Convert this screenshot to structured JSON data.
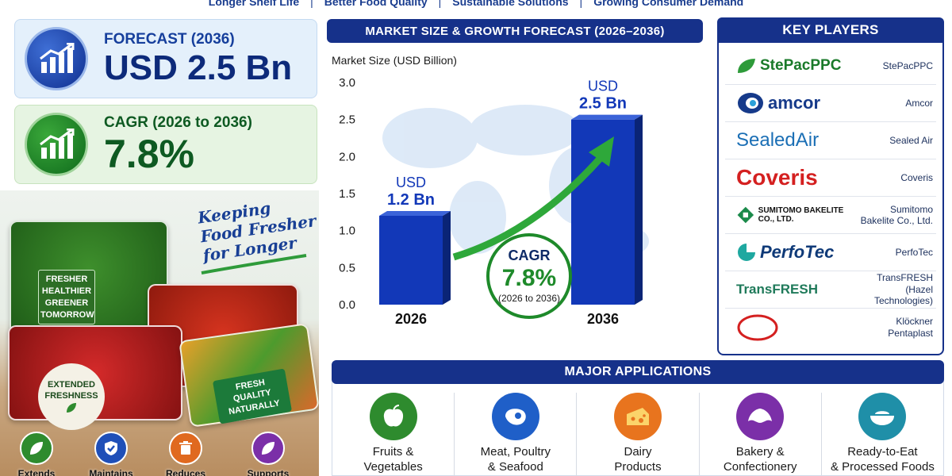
{
  "top_banner": {
    "items": [
      "Longer Shelf Life",
      "Better Food Quality",
      "Sustainable Solutions",
      "Growing Consumer Demand"
    ]
  },
  "forecast_card": {
    "label": "FORECAST (2036)",
    "value": "USD 2.5 Bn"
  },
  "cagr_card": {
    "label": "CAGR (2026 to 2036)",
    "value": "7.8%"
  },
  "photo": {
    "slogan": [
      "Keeping",
      "Food Fresher",
      "for Longer"
    ],
    "tag_fresher": [
      "FRESHER",
      "HEALTHIER",
      "GREENER",
      "TOMORROW"
    ],
    "tag_extended": [
      "EXTENDED",
      "FRESHNESS"
    ],
    "tag_fresh": [
      "FRESH",
      "QUALITY",
      "NATURALLY"
    ],
    "benefits": [
      {
        "label": "Extends",
        "icon": "leaf-icon",
        "color": "#2e8b2e"
      },
      {
        "label": "Maintains",
        "icon": "shield-check-icon",
        "color": "#1f4fb8"
      },
      {
        "label": "Reduces",
        "icon": "trash-icon",
        "color": "#e0691f"
      },
      {
        "label": "Supports",
        "icon": "leaf-icon",
        "color": "#7b2fa8"
      }
    ]
  },
  "chart_data": {
    "type": "bar",
    "title": "MARKET SIZE & GROWTH FORECAST (2026–2036)",
    "ylabel": "Market Size (USD Billion)",
    "xlabel": "",
    "categories": [
      "2026",
      "2036"
    ],
    "values": [
      1.2,
      2.5
    ],
    "value_labels": [
      [
        "USD",
        "1.2 Bn"
      ],
      [
        "USD",
        "2.5 Bn"
      ]
    ],
    "ylim": [
      0,
      3.0
    ],
    "yticks": [
      "3.0",
      "2.5",
      "2.0",
      "1.5",
      "1.0",
      "0.5",
      "0.0"
    ],
    "grid": false,
    "bar_color": "#1238b8",
    "annotation": {
      "line1": "CAGR",
      "line2": "7.8%",
      "line3": "(2026 to 2036)",
      "color": "#1e8a2a"
    }
  },
  "key_players": {
    "title": "KEY PLAYERS",
    "items": [
      {
        "logo": "StePacPPC",
        "name": "StePacPPC",
        "color": "#1a7a2a"
      },
      {
        "logo": "amcor",
        "name": "Amcor",
        "color": "#163a8a"
      },
      {
        "logo": "SealedAir",
        "name": "Sealed Air",
        "color": "#1b6fb5"
      },
      {
        "logo": "Coveris",
        "name": "Coveris",
        "color": "#d42020"
      },
      {
        "logo": "SUMITOMO BAKELITE CO., LTD.",
        "name": "Sumitomo Bakelite Co., Ltd.",
        "color": "#1a8a4a"
      },
      {
        "logo": "PerfoTec",
        "name": "PerfoTec",
        "color": "#0f3a78"
      },
      {
        "logo": "TransFRESH",
        "name": "TransFRESH (Hazel Technologies)",
        "color": "#1f7a5a"
      },
      {
        "logo": "kp",
        "name": "Klöckner Pentaplast",
        "color": "#1a4ab0"
      }
    ]
  },
  "applications": {
    "title": "MAJOR APPLICATIONS",
    "items": [
      {
        "label": [
          "Fruits &",
          "Vegetables"
        ],
        "icon": "apple-icon",
        "color": "#2e8b2e"
      },
      {
        "label": [
          "Meat, Poultry",
          "& Seafood"
        ],
        "icon": "steak-icon",
        "color": "#1f5fc8"
      },
      {
        "label": [
          "Dairy",
          "Products"
        ],
        "icon": "cheese-icon",
        "color": "#e8741e"
      },
      {
        "label": [
          "Bakery &",
          "Confectionery"
        ],
        "icon": "croissant-icon",
        "color": "#7b2fa8"
      },
      {
        "label": [
          "Ready-to-Eat",
          "& Processed Foods"
        ],
        "icon": "bowl-icon",
        "color": "#1f8fa8"
      }
    ]
  }
}
